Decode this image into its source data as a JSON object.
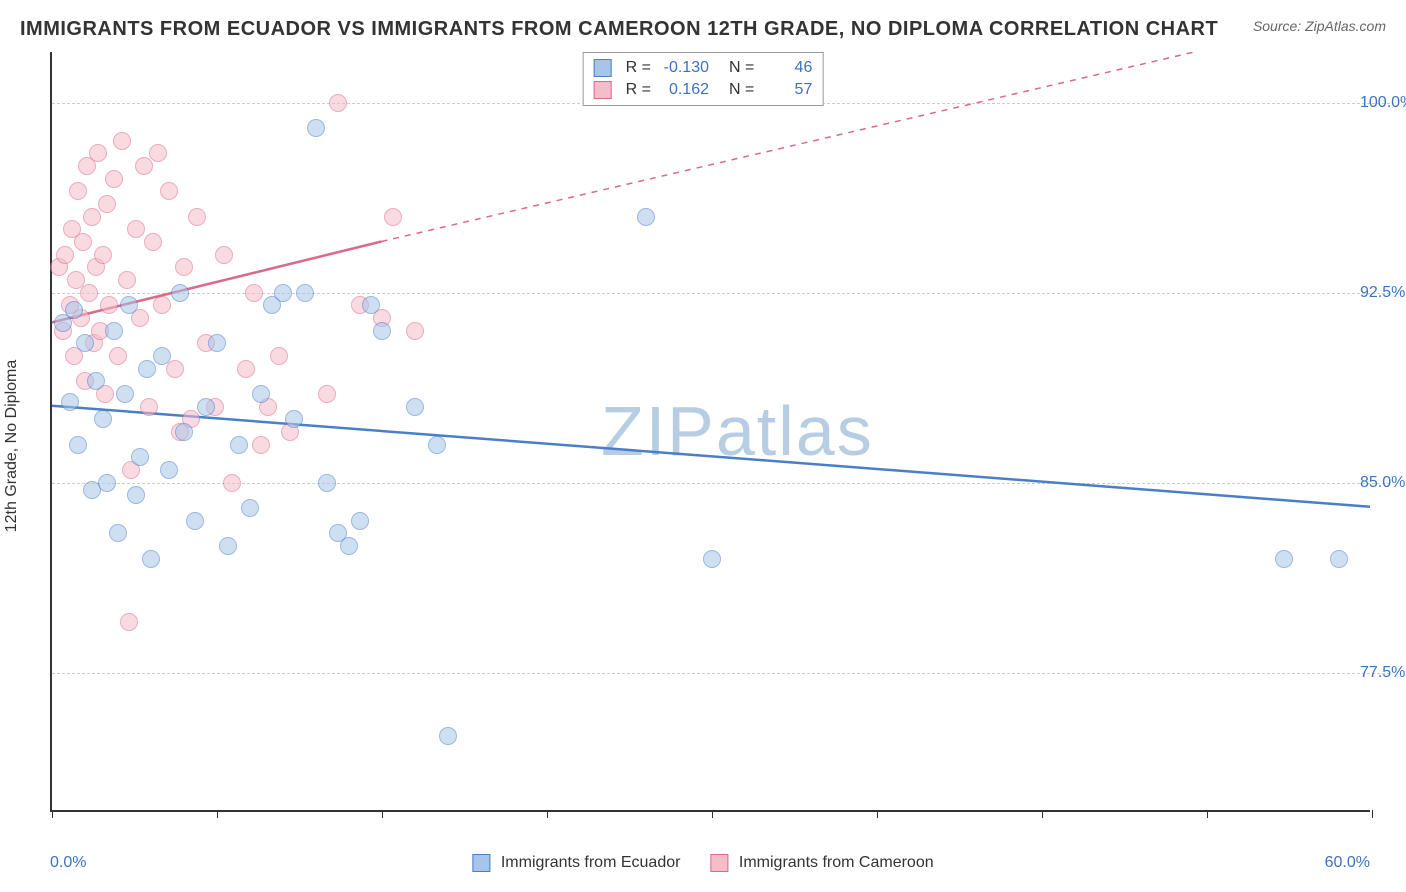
{
  "title": "IMMIGRANTS FROM ECUADOR VS IMMIGRANTS FROM CAMEROON 12TH GRADE, NO DIPLOMA CORRELATION CHART",
  "source": "Source: ZipAtlas.com",
  "yaxis_label": "12th Grade, No Diploma",
  "watermark": "ZIPatlas",
  "plot": {
    "x_min": 0.0,
    "x_max": 60.0,
    "y_min": 72.0,
    "y_max": 102.0,
    "x_labels": {
      "min": "0.0%",
      "max": "60.0%"
    },
    "y_ticks": [
      {
        "value": 77.5,
        "label": "77.5%"
      },
      {
        "value": 85.0,
        "label": "85.0%"
      },
      {
        "value": 92.5,
        "label": "92.5%"
      },
      {
        "value": 100.0,
        "label": "100.0%"
      }
    ],
    "x_tick_positions": [
      0,
      7.5,
      15,
      22.5,
      30,
      37.5,
      45,
      52.5,
      60
    ],
    "grid_color": "#cccccc",
    "axis_color": "#333333",
    "point_radius": 9,
    "point_opacity": 0.55,
    "series": [
      {
        "id": "ecuador",
        "label": "Immigrants from Ecuador",
        "color_fill": "#a7c5e8",
        "color_stroke": "#4a7fc7",
        "R": "-0.130",
        "N": "46",
        "regression": {
          "x1": 0,
          "y1": 88.0,
          "x2": 60,
          "y2": 84.0,
          "dash": false,
          "width": 2.5
        },
        "points": [
          [
            0.5,
            91.3
          ],
          [
            0.8,
            88.2
          ],
          [
            1.0,
            91.8
          ],
          [
            1.2,
            86.5
          ],
          [
            1.5,
            90.5
          ],
          [
            1.8,
            84.7
          ],
          [
            2.0,
            89.0
          ],
          [
            2.3,
            87.5
          ],
          [
            2.5,
            85.0
          ],
          [
            2.8,
            91.0
          ],
          [
            3.0,
            83.0
          ],
          [
            3.3,
            88.5
          ],
          [
            3.5,
            92.0
          ],
          [
            3.8,
            84.5
          ],
          [
            4.0,
            86.0
          ],
          [
            4.3,
            89.5
          ],
          [
            4.5,
            82.0
          ],
          [
            5.0,
            90.0
          ],
          [
            5.3,
            85.5
          ],
          [
            5.8,
            92.5
          ],
          [
            6.0,
            87.0
          ],
          [
            6.5,
            83.5
          ],
          [
            7.0,
            88.0
          ],
          [
            7.5,
            90.5
          ],
          [
            8.0,
            82.5
          ],
          [
            8.5,
            86.5
          ],
          [
            9.0,
            84.0
          ],
          [
            9.5,
            88.5
          ],
          [
            10.0,
            92.0
          ],
          [
            10.5,
            92.5
          ],
          [
            11.0,
            87.5
          ],
          [
            11.5,
            92.5
          ],
          [
            12.0,
            99.0
          ],
          [
            12.5,
            85.0
          ],
          [
            13.0,
            83.0
          ],
          [
            13.5,
            82.5
          ],
          [
            14.5,
            92.0
          ],
          [
            14.0,
            83.5
          ],
          [
            15.0,
            91.0
          ],
          [
            16.5,
            88.0
          ],
          [
            17.5,
            86.5
          ],
          [
            18.0,
            75.0
          ],
          [
            27.0,
            95.5
          ],
          [
            30.0,
            82.0
          ],
          [
            56.0,
            82.0
          ],
          [
            58.5,
            82.0
          ]
        ]
      },
      {
        "id": "cameroon",
        "label": "Immigrants from Cameroon",
        "color_fill": "#f5bcc9",
        "color_stroke": "#d96a8a",
        "R": "0.162",
        "N": "57",
        "regression_solid": {
          "x1": 0,
          "y1": 91.3,
          "x2": 15,
          "y2": 94.5,
          "width": 2.5
        },
        "regression_dash": {
          "x1": 15,
          "y1": 94.5,
          "x2": 52,
          "y2": 102.0
        },
        "points": [
          [
            0.3,
            93.5
          ],
          [
            0.5,
            91.0
          ],
          [
            0.6,
            94.0
          ],
          [
            0.8,
            92.0
          ],
          [
            0.9,
            95.0
          ],
          [
            1.0,
            90.0
          ],
          [
            1.1,
            93.0
          ],
          [
            1.2,
            96.5
          ],
          [
            1.3,
            91.5
          ],
          [
            1.4,
            94.5
          ],
          [
            1.5,
            89.0
          ],
          [
            1.6,
            97.5
          ],
          [
            1.7,
            92.5
          ],
          [
            1.8,
            95.5
          ],
          [
            1.9,
            90.5
          ],
          [
            2.0,
            93.5
          ],
          [
            2.1,
            98.0
          ],
          [
            2.2,
            91.0
          ],
          [
            2.3,
            94.0
          ],
          [
            2.4,
            88.5
          ],
          [
            2.5,
            96.0
          ],
          [
            2.6,
            92.0
          ],
          [
            2.8,
            97.0
          ],
          [
            3.0,
            90.0
          ],
          [
            3.2,
            98.5
          ],
          [
            3.4,
            93.0
          ],
          [
            3.6,
            85.5
          ],
          [
            3.8,
            95.0
          ],
          [
            3.5,
            79.5
          ],
          [
            4.0,
            91.5
          ],
          [
            4.2,
            97.5
          ],
          [
            4.4,
            88.0
          ],
          [
            4.6,
            94.5
          ],
          [
            4.8,
            98.0
          ],
          [
            5.0,
            92.0
          ],
          [
            5.3,
            96.5
          ],
          [
            5.6,
            89.5
          ],
          [
            5.8,
            87.0
          ],
          [
            6.0,
            93.5
          ],
          [
            6.3,
            87.5
          ],
          [
            6.6,
            95.5
          ],
          [
            7.0,
            90.5
          ],
          [
            7.4,
            88.0
          ],
          [
            7.8,
            94.0
          ],
          [
            8.2,
            85.0
          ],
          [
            8.8,
            89.5
          ],
          [
            9.2,
            92.5
          ],
          [
            9.5,
            86.5
          ],
          [
            9.8,
            88.0
          ],
          [
            10.3,
            90.0
          ],
          [
            10.8,
            87.0
          ],
          [
            12.5,
            88.5
          ],
          [
            13.0,
            100.0
          ],
          [
            14.0,
            92.0
          ],
          [
            15.0,
            91.5
          ],
          [
            15.5,
            95.5
          ],
          [
            16.5,
            91.0
          ]
        ]
      }
    ]
  },
  "legend": {
    "series1_label": "Immigrants from Ecuador",
    "series2_label": "Immigrants from Cameroon"
  }
}
